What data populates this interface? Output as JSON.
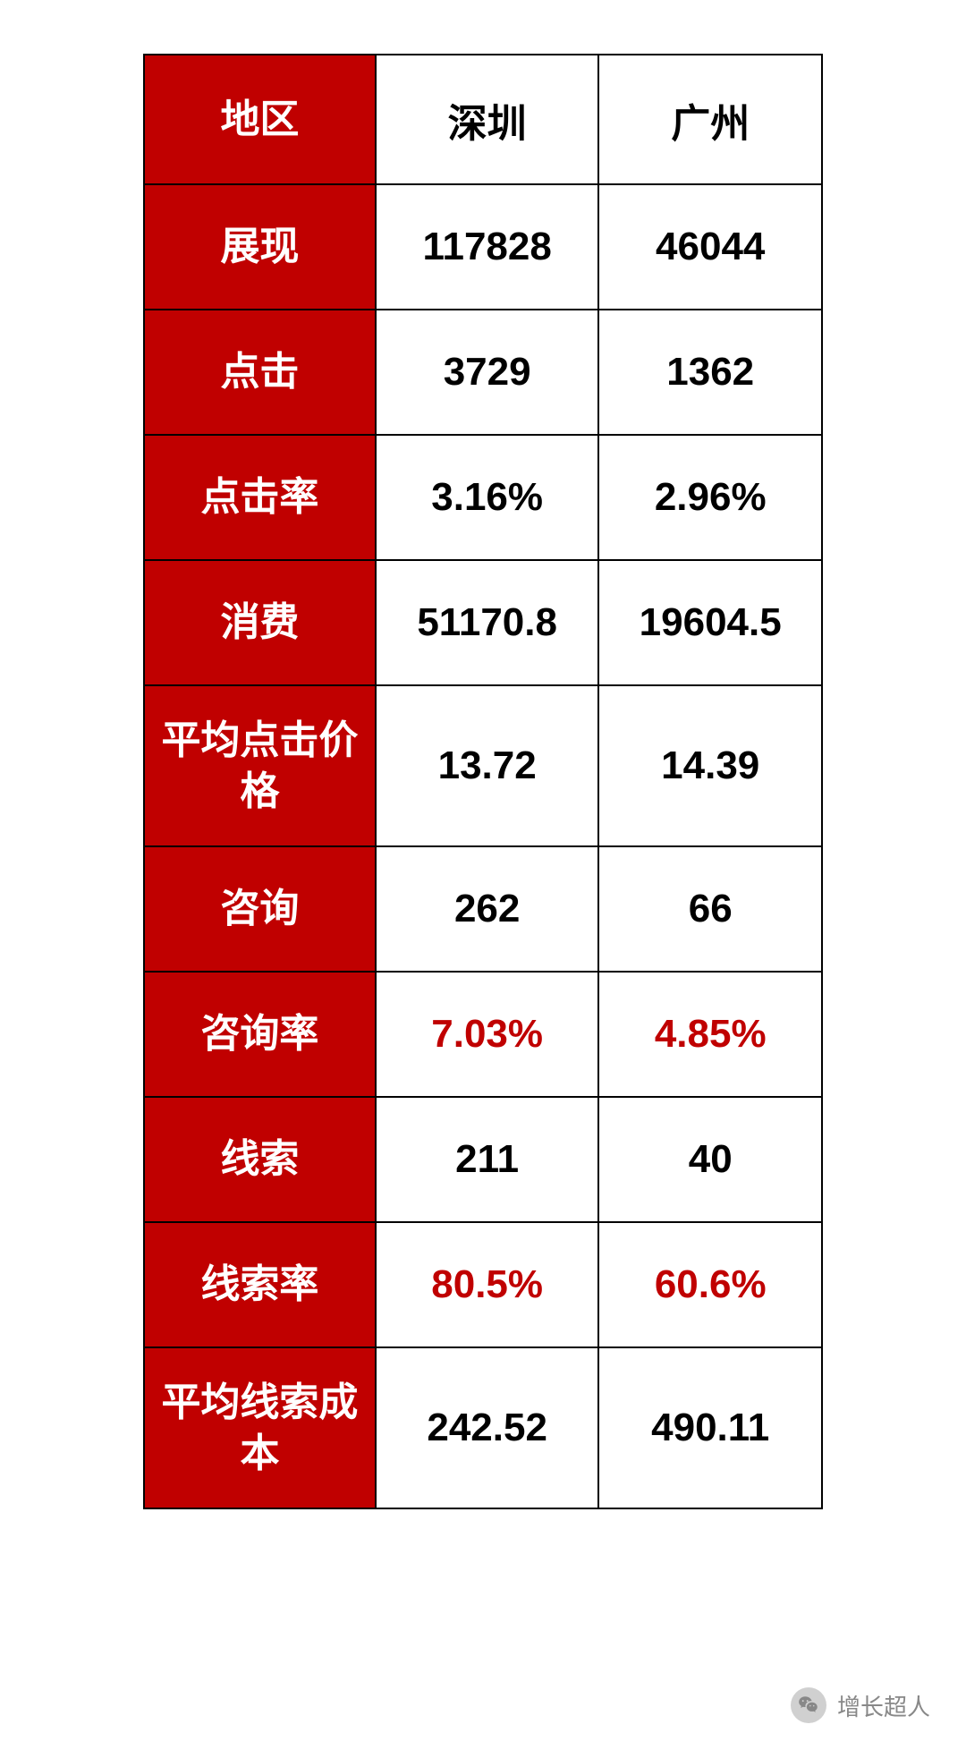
{
  "table": {
    "type": "table",
    "columns": [
      "地区",
      "深圳",
      "广州"
    ],
    "rows": [
      {
        "label": "地区",
        "col1": "深圳",
        "col2": "广州",
        "highlight": false,
        "tall": false,
        "isHeader": true
      },
      {
        "label": "展现",
        "col1": "117828",
        "col2": "46044",
        "highlight": false,
        "tall": false,
        "isHeader": false
      },
      {
        "label": "点击",
        "col1": "3729",
        "col2": "1362",
        "highlight": false,
        "tall": false,
        "isHeader": false
      },
      {
        "label": "点击率",
        "col1": "3.16%",
        "col2": "2.96%",
        "highlight": false,
        "tall": false,
        "isHeader": false
      },
      {
        "label": "消费",
        "col1": "51170.8",
        "col2": "19604.5",
        "highlight": false,
        "tall": false,
        "isHeader": false
      },
      {
        "label": "平均点击价格",
        "col1": "13.72",
        "col2": "14.39",
        "highlight": false,
        "tall": true,
        "isHeader": false
      },
      {
        "label": "咨询",
        "col1": "262",
        "col2": "66",
        "highlight": false,
        "tall": false,
        "isHeader": false
      },
      {
        "label": "咨询率",
        "col1": "7.03%",
        "col2": "4.85%",
        "highlight": true,
        "tall": false,
        "isHeader": false
      },
      {
        "label": "线索",
        "col1": "211",
        "col2": "40",
        "highlight": false,
        "tall": false,
        "isHeader": false
      },
      {
        "label": "线索率",
        "col1": "80.5%",
        "col2": "60.6%",
        "highlight": true,
        "tall": false,
        "isHeader": false
      },
      {
        "label": "平均线索成本",
        "col1": "242.52",
        "col2": "490.11",
        "highlight": false,
        "tall": true,
        "isHeader": false
      }
    ],
    "styling": {
      "label_bg_color": "#c00000",
      "label_text_color": "#ffffff",
      "data_bg_color": "#ffffff",
      "data_text_color": "#000000",
      "highlight_text_color": "#c00000",
      "border_color": "#000000",
      "border_width": 2,
      "font_size": 44,
      "font_weight": "bold",
      "label_col_width": 260,
      "data_col_width": 250,
      "row_height_normal": 140,
      "row_height_tall": 180
    }
  },
  "watermark": {
    "text": "增长超人",
    "icon": "wechat-icon",
    "text_color": "#888888",
    "font_size": 26
  }
}
